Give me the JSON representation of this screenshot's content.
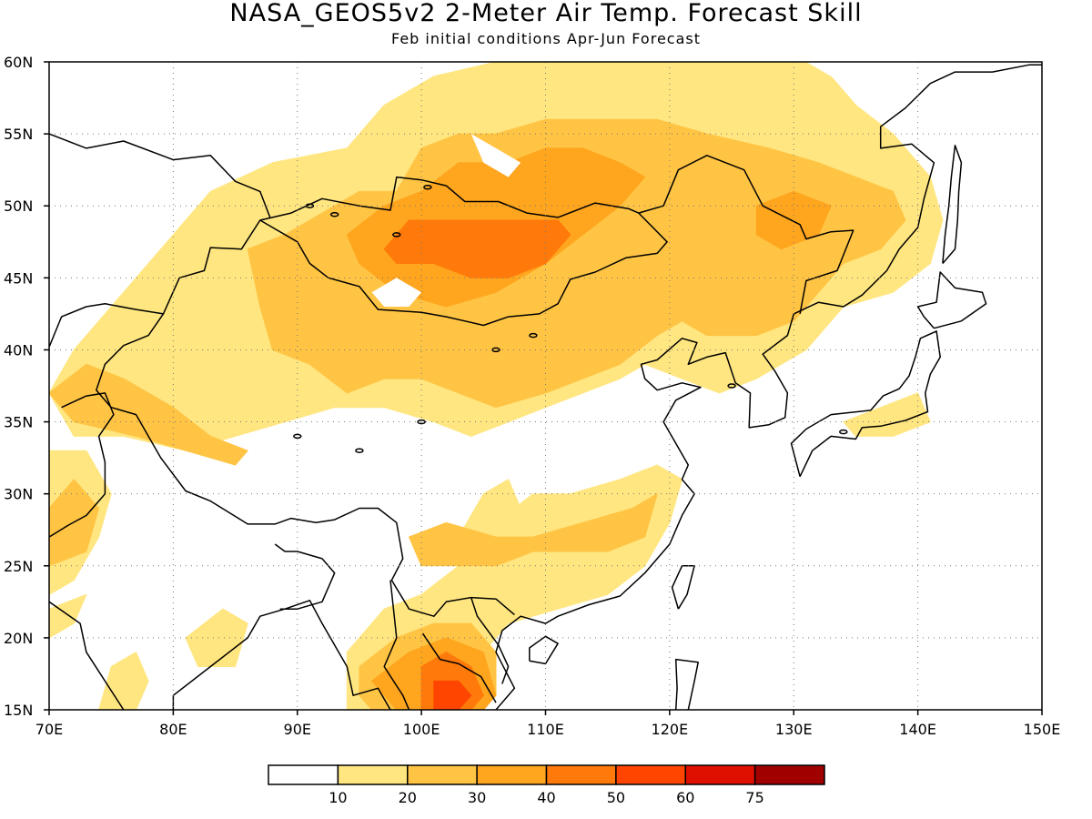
{
  "title": "NASA_GEOS5v2 2-Meter Air Temp. Forecast Skill",
  "subtitle": "Feb initial conditions  Apr-Jun Forecast",
  "map": {
    "lon_range": [
      70,
      150
    ],
    "lat_range": [
      15,
      60
    ],
    "lon_ticks": [
      {
        "value": 70,
        "label": "70E"
      },
      {
        "value": 80,
        "label": "80E"
      },
      {
        "value": 90,
        "label": "90E"
      },
      {
        "value": 100,
        "label": "100E"
      },
      {
        "value": 110,
        "label": "110E"
      },
      {
        "value": 120,
        "label": "120E"
      },
      {
        "value": 130,
        "label": "130E"
      },
      {
        "value": 140,
        "label": "140E"
      },
      {
        "value": 150,
        "label": "150E"
      }
    ],
    "lat_ticks": [
      {
        "value": 15,
        "label": "15N"
      },
      {
        "value": 20,
        "label": "20N"
      },
      {
        "value": 25,
        "label": "25N"
      },
      {
        "value": 30,
        "label": "30N"
      },
      {
        "value": 35,
        "label": "35N"
      },
      {
        "value": 40,
        "label": "40N"
      },
      {
        "value": 45,
        "label": "45N"
      },
      {
        "value": 50,
        "label": "50N"
      },
      {
        "value": 55,
        "label": "55N"
      },
      {
        "value": 60,
        "label": "60N"
      }
    ],
    "skill_regions": [
      {
        "level": 1,
        "pts": [
          [
            70,
            37
          ],
          [
            72,
            40
          ],
          [
            76,
            44
          ],
          [
            80,
            48
          ],
          [
            83,
            51
          ],
          [
            88,
            53
          ],
          [
            94,
            54
          ],
          [
            97,
            57
          ],
          [
            101,
            59
          ],
          [
            106,
            60
          ],
          [
            118,
            60
          ],
          [
            124,
            60
          ],
          [
            132,
            60
          ],
          [
            135,
            57
          ],
          [
            138,
            55
          ],
          [
            141,
            52
          ],
          [
            142,
            49
          ],
          [
            141,
            46
          ],
          [
            138,
            44
          ],
          [
            134,
            43
          ],
          [
            131,
            40
          ],
          [
            127,
            38
          ],
          [
            123,
            40
          ],
          [
            121,
            40
          ],
          [
            118,
            39
          ],
          [
            116,
            38
          ],
          [
            113,
            37
          ],
          [
            110,
            36
          ],
          [
            107,
            35
          ],
          [
            104,
            34
          ],
          [
            101,
            35
          ],
          [
            97,
            36
          ],
          [
            93,
            36
          ],
          [
            89,
            35
          ],
          [
            85,
            34
          ],
          [
            81,
            33
          ],
          [
            76,
            34
          ],
          [
            72,
            34
          ]
        ]
      },
      {
        "level": 1,
        "pts": [
          [
            70,
            33
          ],
          [
            73,
            33
          ],
          [
            75,
            30
          ],
          [
            74,
            27
          ],
          [
            72,
            24
          ],
          [
            70,
            23
          ]
        ]
      },
      {
        "level": 1,
        "pts": [
          [
            97,
            22
          ],
          [
            100,
            23
          ],
          [
            103,
            25
          ],
          [
            106,
            28
          ],
          [
            109,
            30
          ],
          [
            112,
            30
          ],
          [
            116,
            31
          ],
          [
            119,
            32
          ],
          [
            121,
            31
          ],
          [
            120,
            28
          ],
          [
            118,
            25
          ],
          [
            115,
            23
          ],
          [
            111,
            22
          ],
          [
            107,
            21
          ],
          [
            105,
            19
          ],
          [
            106,
            16
          ],
          [
            105,
            15
          ],
          [
            94,
            15
          ],
          [
            94,
            19
          ]
        ]
      },
      {
        "level": 1,
        "pts": [
          [
            104,
            25
          ],
          [
            103,
            27
          ],
          [
            105,
            30
          ],
          [
            107,
            31
          ],
          [
            108,
            29
          ],
          [
            106,
            26
          ]
        ]
      },
      {
        "level": 1,
        "pts": [
          [
            75,
            18
          ],
          [
            77,
            19
          ],
          [
            78,
            17
          ],
          [
            77,
            15
          ],
          [
            74,
            15
          ]
        ]
      },
      {
        "level": 1,
        "pts": [
          [
            81,
            20
          ],
          [
            84,
            22
          ],
          [
            86,
            21
          ],
          [
            85,
            18
          ],
          [
            82,
            18
          ]
        ]
      },
      {
        "level": 1,
        "pts": [
          [
            70,
            22
          ],
          [
            73,
            23
          ],
          [
            72,
            21
          ],
          [
            70,
            20
          ]
        ]
      },
      {
        "level": 1,
        "pts": [
          [
            134,
            35
          ],
          [
            137,
            36
          ],
          [
            140,
            37
          ],
          [
            141,
            35
          ],
          [
            138,
            34
          ],
          [
            135,
            34
          ]
        ]
      },
      {
        "level": 1,
        "pts": [
          [
            119,
            42
          ],
          [
            121,
            41
          ],
          [
            123,
            40
          ],
          [
            125,
            39
          ],
          [
            127,
            38
          ],
          [
            124,
            37
          ],
          [
            121,
            38
          ],
          [
            118,
            39
          ]
        ]
      },
      {
        "level": 2,
        "pts": [
          [
            86,
            47
          ],
          [
            89,
            48
          ],
          [
            91,
            49
          ],
          [
            95,
            51
          ],
          [
            98,
            51
          ],
          [
            100,
            54
          ],
          [
            103,
            55
          ],
          [
            106,
            55
          ],
          [
            110,
            56
          ],
          [
            115,
            56
          ],
          [
            119,
            56
          ],
          [
            123,
            55
          ],
          [
            128,
            54
          ],
          [
            132,
            53
          ],
          [
            135,
            52
          ],
          [
            138,
            51
          ],
          [
            139,
            49
          ],
          [
            137,
            47
          ],
          [
            134,
            46
          ],
          [
            132,
            44
          ],
          [
            130,
            42
          ],
          [
            127,
            41
          ],
          [
            123,
            41
          ],
          [
            121,
            42
          ],
          [
            119,
            41
          ],
          [
            116,
            39
          ],
          [
            113,
            38
          ],
          [
            110,
            37
          ],
          [
            106,
            36
          ],
          [
            103,
            37
          ],
          [
            100,
            38
          ],
          [
            97,
            38
          ],
          [
            94,
            37
          ],
          [
            91,
            39
          ],
          [
            88,
            40
          ],
          [
            87,
            43
          ]
        ]
      },
      {
        "level": 2,
        "pts": [
          [
            70,
            37
          ],
          [
            73,
            39
          ],
          [
            76,
            38
          ],
          [
            80,
            36
          ],
          [
            83,
            34
          ],
          [
            86,
            33
          ],
          [
            85,
            32
          ],
          [
            81,
            33
          ],
          [
            77,
            34
          ],
          [
            72,
            35
          ]
        ]
      },
      {
        "level": 2,
        "pts": [
          [
            99,
            27
          ],
          [
            102,
            28
          ],
          [
            106,
            27
          ],
          [
            109,
            27
          ],
          [
            113,
            28
          ],
          [
            117,
            29
          ],
          [
            119,
            30
          ],
          [
            118,
            27
          ],
          [
            115,
            26
          ],
          [
            112,
            26
          ],
          [
            109,
            26
          ],
          [
            106,
            25
          ],
          [
            103,
            25
          ],
          [
            100,
            25
          ]
        ]
      },
      {
        "level": 2,
        "pts": [
          [
            95,
            18
          ],
          [
            98,
            20
          ],
          [
            101,
            21
          ],
          [
            104,
            21
          ],
          [
            106,
            19
          ],
          [
            106,
            16
          ],
          [
            105,
            15
          ],
          [
            96,
            15
          ],
          [
            95,
            16
          ]
        ]
      },
      {
        "level": 2,
        "pts": [
          [
            72,
            31
          ],
          [
            74,
            29
          ],
          [
            73,
            26
          ],
          [
            70,
            25
          ],
          [
            70,
            29
          ]
        ]
      },
      {
        "level": 3,
        "pts": [
          [
            94,
            48
          ],
          [
            97,
            50
          ],
          [
            100,
            51
          ],
          [
            103,
            53
          ],
          [
            107,
            53
          ],
          [
            110,
            54
          ],
          [
            113,
            54
          ],
          [
            116,
            53
          ],
          [
            118,
            52
          ],
          [
            116,
            50
          ],
          [
            113,
            48
          ],
          [
            110,
            46
          ],
          [
            106,
            44
          ],
          [
            102,
            43
          ],
          [
            98,
            44
          ],
          [
            95,
            46
          ]
        ]
      },
      {
        "level": 3,
        "pts": [
          [
            127,
            50
          ],
          [
            130,
            51
          ],
          [
            133,
            50
          ],
          [
            132,
            48
          ],
          [
            129,
            47
          ],
          [
            127,
            48
          ]
        ]
      },
      {
        "level": 3,
        "pts": [
          [
            96,
            17
          ],
          [
            99,
            19
          ],
          [
            102,
            20
          ],
          [
            105,
            19
          ],
          [
            106,
            16
          ],
          [
            105,
            15
          ],
          [
            98,
            15
          ]
        ]
      },
      {
        "level": 4,
        "pts": [
          [
            97,
            47
          ],
          [
            99,
            49
          ],
          [
            102,
            49
          ],
          [
            105,
            49
          ],
          [
            108,
            49
          ],
          [
            111,
            49
          ],
          [
            112,
            48
          ],
          [
            110,
            46
          ],
          [
            107,
            45
          ],
          [
            104,
            45
          ],
          [
            101,
            46
          ],
          [
            98,
            46
          ]
        ]
      },
      {
        "level": 4,
        "pts": [
          [
            100,
            18
          ],
          [
            102,
            19
          ],
          [
            104,
            18
          ],
          [
            105,
            16
          ],
          [
            104,
            15
          ],
          [
            100,
            15
          ]
        ]
      },
      {
        "level": 5,
        "pts": [
          [
            101,
            17
          ],
          [
            103,
            17
          ],
          [
            104,
            16
          ],
          [
            103,
            15
          ],
          [
            101,
            15
          ]
        ]
      }
    ],
    "gap_regions": [
      {
        "pts": [
          [
            96,
            44
          ],
          [
            98,
            45
          ],
          [
            100,
            44
          ],
          [
            99,
            43
          ],
          [
            97,
            43
          ]
        ]
      },
      {
        "pts": [
          [
            104,
            55
          ],
          [
            106,
            54
          ],
          [
            108,
            53
          ],
          [
            107,
            52
          ],
          [
            105,
            53
          ]
        ]
      },
      {
        "pts": [
          [
            131,
            60
          ],
          [
            135,
            58
          ],
          [
            138,
            56
          ],
          [
            141,
            53
          ],
          [
            143,
            50
          ],
          [
            146,
            55
          ],
          [
            150,
            60
          ]
        ]
      }
    ]
  },
  "colorbar": {
    "labels": [
      "10",
      "20",
      "30",
      "40",
      "50",
      "60",
      "75"
    ],
    "colors": [
      "#ffffff",
      "#ffe680",
      "#ffc444",
      "#ffa51e",
      "#ff7a0a",
      "#ff4500",
      "#e01000",
      "#a00000"
    ]
  }
}
